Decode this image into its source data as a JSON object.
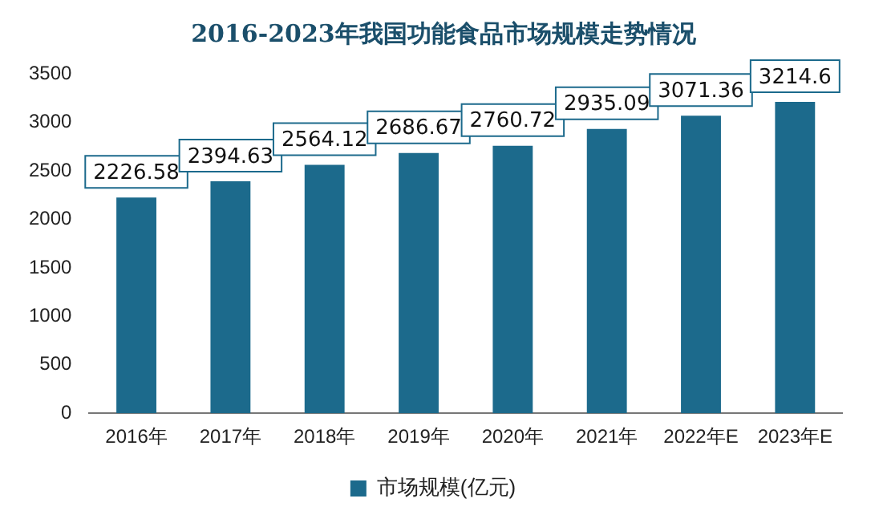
{
  "chart_data": {
    "type": "bar",
    "title": "2016-2023年我国功能食品市场规模走势情况",
    "categories": [
      "2016年",
      "2017年",
      "2018年",
      "2019年",
      "2020年",
      "2021年",
      "2022年E",
      "2023年E"
    ],
    "series": [
      {
        "name": "市场规模(亿元)",
        "color": "#1c6a8c",
        "values": [
          2226.58,
          2394.63,
          2564.12,
          2686.67,
          2760.72,
          2935.09,
          3071.36,
          3214.6
        ]
      }
    ],
    "ylim": [
      0,
      3500
    ],
    "yticks": [
      0,
      500,
      1000,
      1500,
      2000,
      2500,
      3000,
      3500
    ],
    "grid": false,
    "legend": "bottom",
    "data_labels": true
  }
}
